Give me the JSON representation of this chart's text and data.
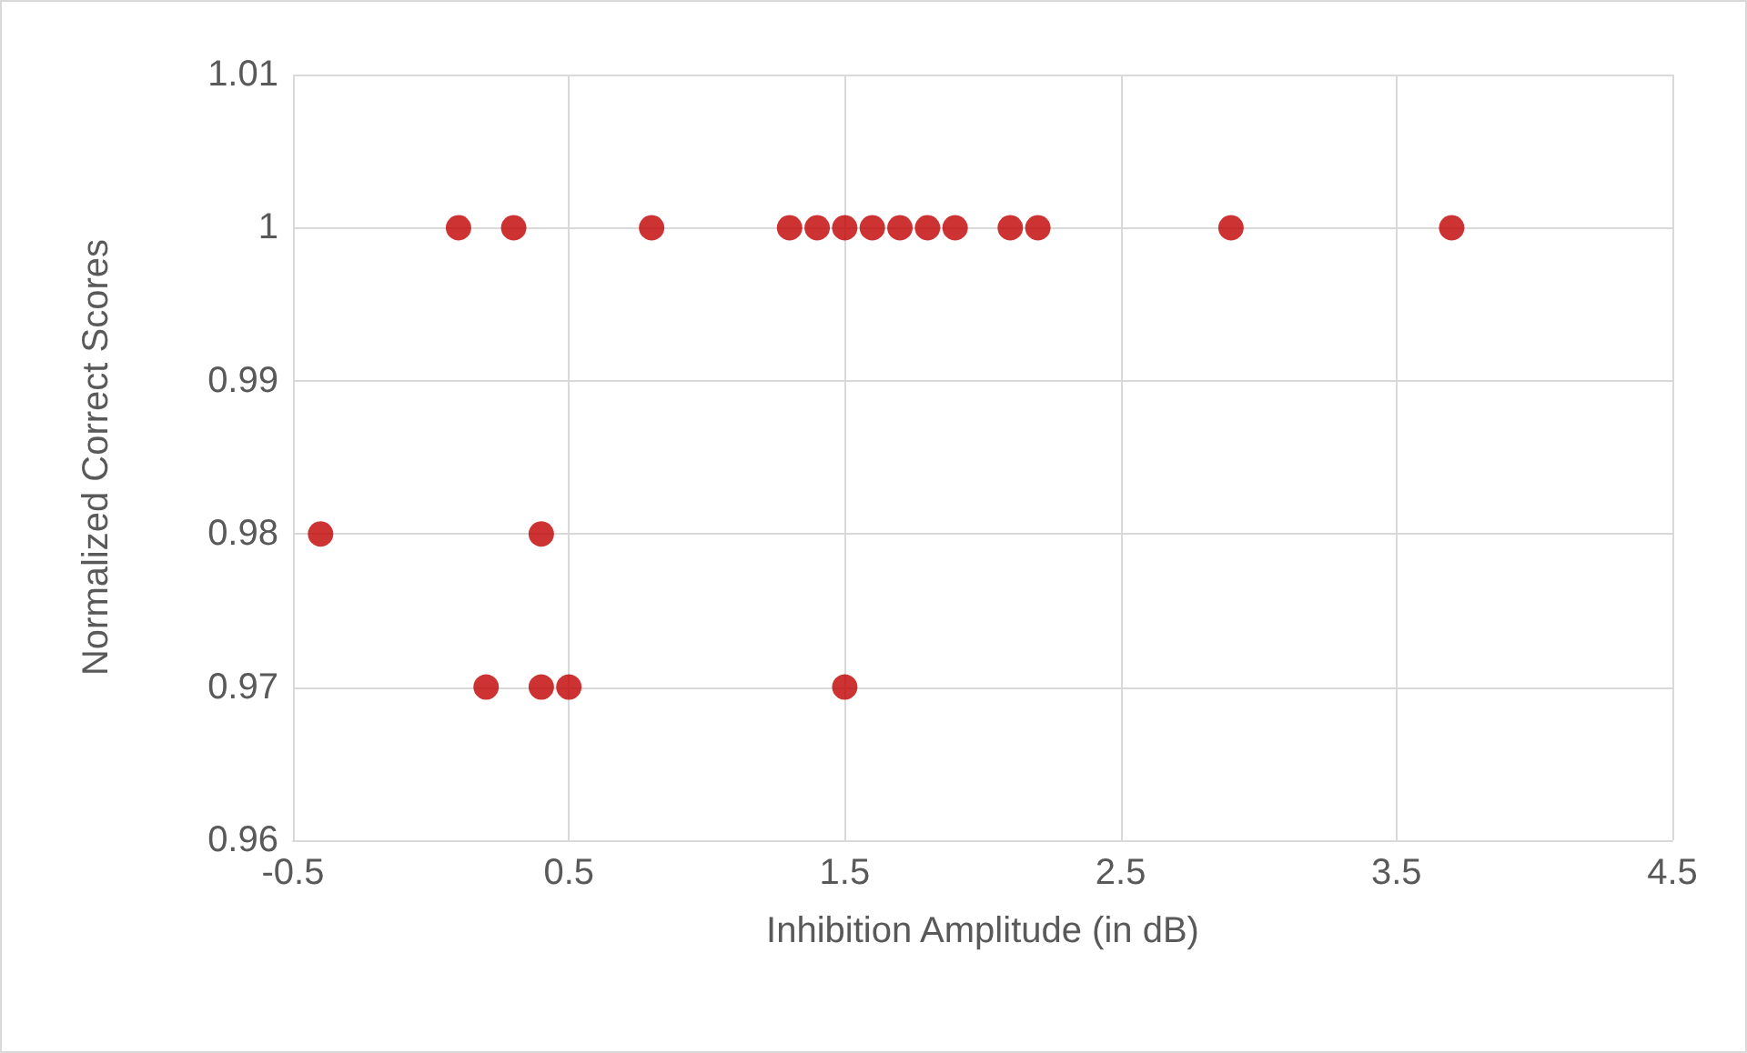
{
  "chart_data": {
    "type": "scatter",
    "xlabel": "Inhibition Amplitude (in dB)",
    "ylabel": "Normalized Correct Scores",
    "x": [
      0.1,
      0.3,
      0.8,
      1.3,
      1.4,
      1.5,
      1.6,
      1.7,
      1.8,
      1.9,
      2.1,
      2.2,
      2.9,
      3.7,
      -0.4,
      0.4,
      0.2,
      0.4,
      0.5,
      1.5
    ],
    "series": [
      {
        "color": "#c00000",
        "values": [
          1,
          1,
          1,
          1,
          1,
          1,
          1,
          1,
          1,
          1,
          1,
          1,
          1,
          1,
          0.98,
          0.98,
          0.97,
          0.97,
          0.97,
          0.97
        ]
      }
    ],
    "xlim": [
      -0.5,
      4.5
    ],
    "xticks": [
      -0.5,
      0.5,
      1.5,
      2.5,
      3.5,
      4.5
    ],
    "ylim": [
      0.96,
      1.01
    ],
    "yticks": [
      0.96,
      0.97,
      0.98,
      0.99,
      1,
      1.01
    ],
    "grid": true,
    "marker": "circle"
  }
}
